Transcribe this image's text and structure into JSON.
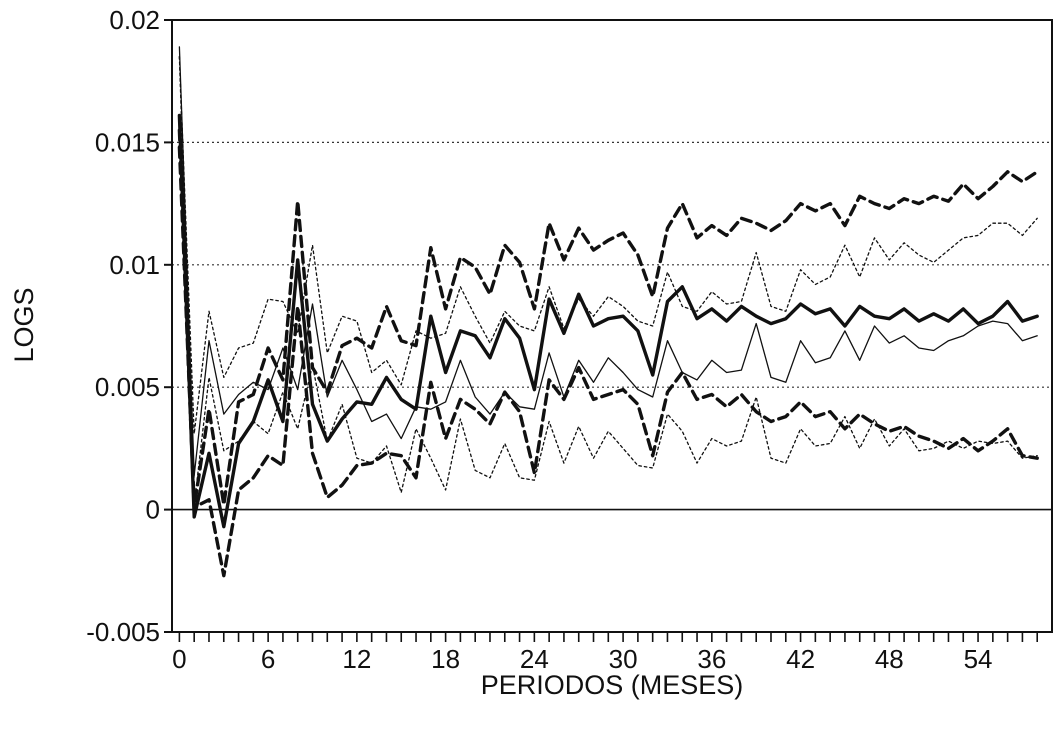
{
  "chart_data": {
    "type": "line",
    "title": "",
    "xlabel": "PERIODOS (MESES)",
    "ylabel": "LOGS",
    "xlim": [
      -0.5,
      59
    ],
    "ylim": [
      -0.005,
      0.02
    ],
    "x_ticks": [
      0,
      6,
      12,
      18,
      24,
      30,
      36,
      42,
      48,
      54
    ],
    "x_tick_labels": [
      "0",
      "6",
      "12",
      "18",
      "24",
      "30",
      "36",
      "42",
      "48",
      "54"
    ],
    "y_ticks": [
      -0.005,
      0,
      0.005,
      0.01,
      0.015,
      0.02
    ],
    "y_tick_labels": [
      "-0.005",
      "0",
      "0.005",
      "0.01",
      "0.015",
      "0.02"
    ],
    "grid": "horizontal dotted",
    "legend": "none",
    "x": [
      0,
      1,
      2,
      3,
      4,
      5,
      6,
      7,
      8,
      9,
      10,
      11,
      12,
      13,
      14,
      15,
      16,
      17,
      18,
      19,
      20,
      21,
      22,
      23,
      24,
      25,
      26,
      27,
      28,
      29,
      30,
      31,
      32,
      33,
      34,
      35,
      36,
      37,
      38,
      39,
      40,
      41,
      42,
      43,
      44,
      45,
      46,
      47,
      48,
      49,
      50,
      51,
      52,
      53,
      54,
      55,
      56,
      57,
      58
    ],
    "series": [
      {
        "style": "thick-solid",
        "values": [
          0.0161,
          -0.0003,
          0.0023,
          -0.0007,
          0.0027,
          0.0036,
          0.0053,
          0.0036,
          0.0102,
          0.0043,
          0.0028,
          0.0037,
          0.0044,
          0.0043,
          0.0054,
          0.0045,
          0.0041,
          0.0079,
          0.0056,
          0.0073,
          0.0071,
          0.0062,
          0.0078,
          0.007,
          0.0049,
          0.0086,
          0.0072,
          0.0088,
          0.0075,
          0.0078,
          0.0079,
          0.0073,
          0.0055,
          0.0085,
          0.0091,
          0.0078,
          0.0082,
          0.0077,
          0.0083,
          0.0079,
          0.0076,
          0.0078,
          0.0084,
          0.008,
          0.0082,
          0.0075,
          0.0083,
          0.0079,
          0.0078,
          0.0082,
          0.0077,
          0.008,
          0.0077,
          0.0082,
          0.0076,
          0.0079,
          0.0085,
          0.0077,
          0.0079
        ]
      },
      {
        "style": "thin-solid",
        "values": [
          0.0189,
          0.0014,
          0.0069,
          0.0039,
          0.0047,
          0.0052,
          0.0049,
          0.0066,
          0.0049,
          0.0084,
          0.0046,
          0.0061,
          0.0049,
          0.0036,
          0.0039,
          0.0029,
          0.0042,
          0.0041,
          0.0044,
          0.0061,
          0.0046,
          0.0039,
          0.0048,
          0.0042,
          0.0041,
          0.0064,
          0.0046,
          0.0061,
          0.0052,
          0.0062,
          0.0056,
          0.0049,
          0.0046,
          0.0069,
          0.0056,
          0.0053,
          0.0061,
          0.0056,
          0.0057,
          0.0076,
          0.0054,
          0.0052,
          0.0069,
          0.006,
          0.0062,
          0.0073,
          0.0061,
          0.0075,
          0.0068,
          0.0071,
          0.0066,
          0.0065,
          0.0069,
          0.0071,
          0.0075,
          0.0077,
          0.0076,
          0.0069,
          0.0071
        ]
      },
      {
        "style": "thick-dashed",
        "values": [
          0.0155,
          0.0001,
          0.0041,
          0.0002,
          0.0044,
          0.0047,
          0.0066,
          0.0053,
          0.0126,
          0.0058,
          0.0048,
          0.0067,
          0.007,
          0.0066,
          0.0083,
          0.0069,
          0.0067,
          0.0107,
          0.0082,
          0.0103,
          0.0099,
          0.0088,
          0.0108,
          0.0101,
          0.0082,
          0.0117,
          0.0102,
          0.0115,
          0.0106,
          0.011,
          0.0113,
          0.0104,
          0.0087,
          0.0115,
          0.0125,
          0.0111,
          0.0116,
          0.0112,
          0.0119,
          0.0117,
          0.0114,
          0.0118,
          0.0125,
          0.0122,
          0.0125,
          0.0116,
          0.0128,
          0.0125,
          0.0123,
          0.0127,
          0.0125,
          0.0128,
          0.0126,
          0.0133,
          0.0127,
          0.0132,
          0.0138,
          0.0134,
          0.0138
        ]
      },
      {
        "style": "thick-dashed",
        "values": [
          0.0148,
          0.0001,
          0.0004,
          -0.0027,
          0.0008,
          0.0013,
          0.0022,
          0.0018,
          0.0083,
          0.0023,
          0.0005,
          0.001,
          0.0018,
          0.0019,
          0.0023,
          0.0022,
          0.0013,
          0.0052,
          0.0029,
          0.0045,
          0.0041,
          0.0035,
          0.0048,
          0.004,
          0.0015,
          0.0053,
          0.0045,
          0.0058,
          0.0045,
          0.0047,
          0.0049,
          0.0043,
          0.0022,
          0.0048,
          0.0056,
          0.0045,
          0.0047,
          0.0042,
          0.0047,
          0.004,
          0.0036,
          0.0038,
          0.0044,
          0.0038,
          0.004,
          0.0033,
          0.0039,
          0.0035,
          0.0032,
          0.0034,
          0.003,
          0.0028,
          0.0025,
          0.0029,
          0.0024,
          0.0028,
          0.0033,
          0.0022,
          0.0021
        ]
      },
      {
        "style": "thin-dotted",
        "values": [
          0.0185,
          0.0031,
          0.0081,
          0.0054,
          0.0066,
          0.0068,
          0.0086,
          0.0085,
          0.0072,
          0.0108,
          0.0064,
          0.0079,
          0.0077,
          0.0056,
          0.0061,
          0.0051,
          0.0073,
          0.007,
          0.0072,
          0.0091,
          0.0079,
          0.0068,
          0.0081,
          0.0075,
          0.0073,
          0.0091,
          0.0074,
          0.0086,
          0.0079,
          0.0087,
          0.0083,
          0.0077,
          0.0075,
          0.0097,
          0.0083,
          0.0081,
          0.0089,
          0.0084,
          0.0085,
          0.0105,
          0.0083,
          0.0081,
          0.0098,
          0.0092,
          0.0095,
          0.0108,
          0.0095,
          0.0111,
          0.0102,
          0.0109,
          0.0104,
          0.0101,
          0.0106,
          0.0111,
          0.0112,
          0.0117,
          0.0117,
          0.0112,
          0.0119
        ]
      },
      {
        "style": "thin-dotted",
        "values": [
          0.0185,
          0.0002,
          0.0054,
          0.0024,
          0.0028,
          0.0036,
          0.0031,
          0.0048,
          0.0033,
          0.0059,
          0.0028,
          0.0043,
          0.0021,
          0.0019,
          0.0026,
          0.0007,
          0.0033,
          0.0021,
          0.0008,
          0.0037,
          0.0016,
          0.0013,
          0.0027,
          0.0013,
          0.0012,
          0.0036,
          0.0019,
          0.0034,
          0.0021,
          0.0032,
          0.0025,
          0.0018,
          0.0017,
          0.0039,
          0.0032,
          0.0019,
          0.0029,
          0.0026,
          0.0028,
          0.0046,
          0.0021,
          0.0019,
          0.0033,
          0.0026,
          0.0027,
          0.0038,
          0.0025,
          0.0037,
          0.0026,
          0.0033,
          0.0024,
          0.0025,
          0.0028,
          0.0025,
          0.0028,
          0.0027,
          0.0028,
          0.0021,
          0.0022
        ]
      }
    ]
  }
}
